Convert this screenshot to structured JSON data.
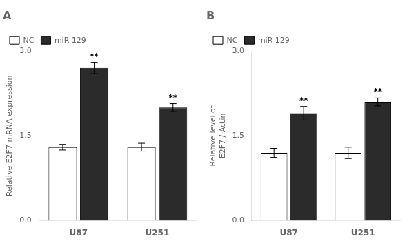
{
  "chart_data": [
    {
      "type": "bar",
      "title": "A",
      "ylabel": "Relative E2F7 mRNA expression",
      "categories": [
        "U87",
        "U251"
      ],
      "series": [
        {
          "name": "NC",
          "color": "#ffffff",
          "values": [
            1.3,
            1.3
          ],
          "errors": [
            0.05,
            0.07
          ]
        },
        {
          "name": "miR-129",
          "color": "#2b2b2b",
          "values": [
            2.7,
            2.0
          ],
          "errors": [
            0.1,
            0.07
          ]
        }
      ],
      "edge_color": "#000000",
      "ylim": [
        0,
        3.0
      ],
      "yticks": [
        {
          "value": 0,
          "label": "0.0"
        },
        1.5,
        {
          "value": 3,
          "label": "3.0"
        }
      ],
      "grid": false,
      "legend": "upper left",
      "annotations": [
        {
          "text": "**",
          "category": "U87",
          "series": "miR-129"
        },
        {
          "text": "**",
          "category": "U251",
          "series": "miR-129"
        }
      ]
    },
    {
      "type": "bar",
      "title": "B",
      "ylabel": "Relative level of\nE2F7 / Actin",
      "categories": [
        "U87",
        "U251"
      ],
      "series": [
        {
          "name": "NC",
          "color": "#ffffff",
          "values": [
            1.2,
            1.2
          ],
          "errors": [
            0.08,
            0.1
          ]
        },
        {
          "name": "miR-129",
          "color": "#2b2b2b",
          "values": [
            1.9,
            2.1
          ],
          "errors": [
            0.12,
            0.07
          ]
        }
      ],
      "edge_color": "#000000",
      "ylim": [
        0,
        3.0
      ],
      "yticks": [
        {
          "value": 0,
          "label": "0.0"
        },
        1.5,
        {
          "value": 3,
          "label": "3.0"
        }
      ],
      "grid": false,
      "legend": "upper left",
      "annotations": [
        {
          "text": "**",
          "category": "U87",
          "series": "miR-129"
        },
        {
          "text": "**",
          "category": "U251",
          "series": "miR-129"
        }
      ]
    }
  ]
}
